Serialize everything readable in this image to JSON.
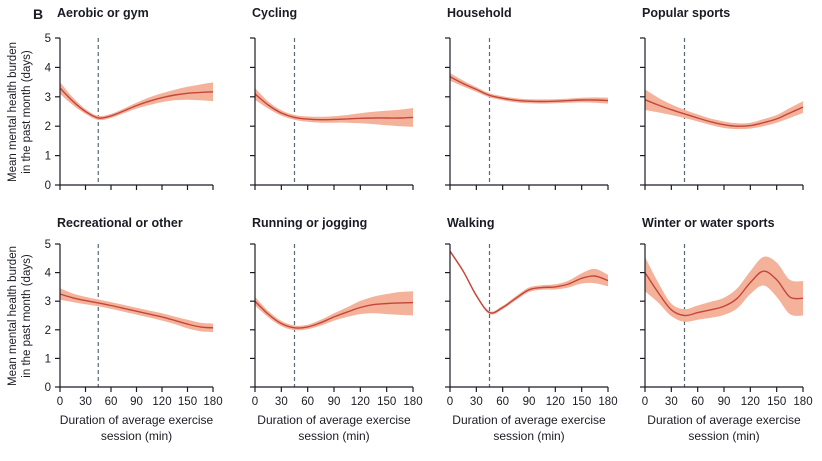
{
  "figure": {
    "panel_letter": "B",
    "ylabel_line1": "Mean mental health burden",
    "ylabel_line2": "in the past month (days)",
    "xlabel_line1": "Duration of average exercise",
    "xlabel_line2": "session (min)"
  },
  "colors": {
    "line": "#c4463a",
    "band": "#f4b29b",
    "dashed": "#5a6973",
    "axis": "#1a1c24",
    "text": "#1a1c24"
  },
  "chart_data": [
    {
      "type": "line",
      "title": "Aerobic or gym",
      "row": 0,
      "col": 0,
      "xlim": [
        0,
        180
      ],
      "ylim": [
        0,
        5
      ],
      "vline_x": 45,
      "xticks": [
        0,
        30,
        60,
        90,
        120,
        150,
        180
      ],
      "yticks": [
        0,
        1,
        2,
        3,
        4,
        5
      ],
      "x": [
        0,
        15,
        30,
        45,
        60,
        75,
        90,
        105,
        120,
        135,
        150,
        165,
        180
      ],
      "y": [
        3.3,
        2.85,
        2.5,
        2.28,
        2.35,
        2.52,
        2.7,
        2.85,
        2.97,
        3.06,
        3.12,
        3.15,
        3.17
      ],
      "ci_low": [
        3.1,
        2.72,
        2.42,
        2.21,
        2.28,
        2.44,
        2.6,
        2.72,
        2.82,
        2.88,
        2.9,
        2.88,
        2.85
      ],
      "ci_high": [
        3.5,
        2.98,
        2.58,
        2.35,
        2.42,
        2.6,
        2.8,
        2.98,
        3.12,
        3.24,
        3.34,
        3.42,
        3.49
      ]
    },
    {
      "type": "line",
      "title": "Cycling",
      "row": 0,
      "col": 1,
      "xlim": [
        0,
        180
      ],
      "ylim": [
        0,
        5
      ],
      "vline_x": 45,
      "xticks": [
        0,
        30,
        60,
        90,
        120,
        150,
        180
      ],
      "yticks": [
        0,
        1,
        2,
        3,
        4,
        5
      ],
      "x": [
        0,
        15,
        30,
        45,
        60,
        75,
        90,
        105,
        120,
        135,
        150,
        165,
        180
      ],
      "y": [
        3.1,
        2.72,
        2.45,
        2.3,
        2.24,
        2.22,
        2.23,
        2.25,
        2.27,
        2.28,
        2.28,
        2.28,
        2.3
      ],
      "ci_low": [
        2.9,
        2.6,
        2.36,
        2.22,
        2.15,
        2.12,
        2.12,
        2.12,
        2.1,
        2.07,
        2.03,
        2.0,
        1.98
      ],
      "ci_high": [
        3.3,
        2.84,
        2.54,
        2.38,
        2.33,
        2.32,
        2.34,
        2.38,
        2.44,
        2.49,
        2.53,
        2.56,
        2.62
      ]
    },
    {
      "type": "line",
      "title": "Household",
      "row": 0,
      "col": 2,
      "xlim": [
        0,
        180
      ],
      "ylim": [
        0,
        5
      ],
      "vline_x": 45,
      "xticks": [
        0,
        30,
        60,
        90,
        120,
        150,
        180
      ],
      "yticks": [
        0,
        1,
        2,
        3,
        4,
        5
      ],
      "x": [
        0,
        15,
        30,
        45,
        60,
        75,
        90,
        105,
        120,
        135,
        150,
        165,
        180
      ],
      "y": [
        3.68,
        3.45,
        3.25,
        3.05,
        2.95,
        2.88,
        2.85,
        2.84,
        2.85,
        2.87,
        2.89,
        2.89,
        2.87
      ],
      "ci_low": [
        3.55,
        3.35,
        3.17,
        2.98,
        2.88,
        2.81,
        2.78,
        2.77,
        2.78,
        2.8,
        2.81,
        2.8,
        2.77
      ],
      "ci_high": [
        3.81,
        3.55,
        3.33,
        3.12,
        3.02,
        2.95,
        2.92,
        2.91,
        2.92,
        2.94,
        2.97,
        2.98,
        2.97
      ]
    },
    {
      "type": "line",
      "title": "Popular sports",
      "row": 0,
      "col": 3,
      "xlim": [
        0,
        180
      ],
      "ylim": [
        0,
        5
      ],
      "vline_x": 45,
      "xticks": [
        0,
        30,
        60,
        90,
        120,
        150,
        180
      ],
      "yticks": [
        0,
        1,
        2,
        3,
        4,
        5
      ],
      "x": [
        0,
        15,
        30,
        45,
        60,
        75,
        90,
        105,
        120,
        135,
        150,
        165,
        180
      ],
      "y": [
        2.9,
        2.72,
        2.56,
        2.42,
        2.28,
        2.15,
        2.05,
        2.0,
        2.02,
        2.12,
        2.25,
        2.45,
        2.65
      ],
      "ci_low": [
        2.55,
        2.47,
        2.38,
        2.28,
        2.16,
        2.04,
        1.94,
        1.9,
        1.92,
        2.0,
        2.12,
        2.28,
        2.45
      ],
      "ci_high": [
        3.25,
        2.97,
        2.74,
        2.56,
        2.4,
        2.26,
        2.16,
        2.1,
        2.12,
        2.24,
        2.38,
        2.62,
        2.85
      ]
    },
    {
      "type": "line",
      "title": "Recreational or other",
      "row": 1,
      "col": 0,
      "xlim": [
        0,
        180
      ],
      "ylim": [
        0,
        5
      ],
      "vline_x": 45,
      "xticks": [
        0,
        30,
        60,
        90,
        120,
        150,
        180
      ],
      "yticks": [
        0,
        1,
        2,
        3,
        4,
        5
      ],
      "x": [
        0,
        15,
        30,
        45,
        60,
        75,
        90,
        105,
        120,
        135,
        150,
        165,
        180
      ],
      "y": [
        3.25,
        3.12,
        3.02,
        2.94,
        2.85,
        2.75,
        2.65,
        2.55,
        2.45,
        2.33,
        2.2,
        2.1,
        2.07
      ],
      "ci_low": [
        3.05,
        2.97,
        2.89,
        2.82,
        2.73,
        2.63,
        2.53,
        2.43,
        2.32,
        2.2,
        2.05,
        1.95,
        1.92
      ],
      "ci_high": [
        3.45,
        3.27,
        3.15,
        3.06,
        2.97,
        2.87,
        2.77,
        2.67,
        2.58,
        2.46,
        2.35,
        2.25,
        2.22
      ]
    },
    {
      "type": "line",
      "title": "Running or jogging",
      "row": 1,
      "col": 1,
      "xlim": [
        0,
        180
      ],
      "ylim": [
        0,
        5
      ],
      "vline_x": 45,
      "xticks": [
        0,
        30,
        60,
        90,
        120,
        150,
        180
      ],
      "yticks": [
        0,
        1,
        2,
        3,
        4,
        5
      ],
      "x": [
        0,
        15,
        30,
        45,
        60,
        75,
        90,
        105,
        120,
        135,
        150,
        165,
        180
      ],
      "y": [
        3.0,
        2.55,
        2.22,
        2.07,
        2.1,
        2.25,
        2.45,
        2.62,
        2.78,
        2.88,
        2.92,
        2.94,
        2.95
      ],
      "ci_low": [
        2.85,
        2.44,
        2.13,
        1.99,
        2.02,
        2.15,
        2.32,
        2.45,
        2.55,
        2.58,
        2.55,
        2.52,
        2.5
      ],
      "ci_high": [
        3.15,
        2.66,
        2.31,
        2.15,
        2.18,
        2.35,
        2.58,
        2.79,
        3.01,
        3.16,
        3.25,
        3.32,
        3.35
      ]
    },
    {
      "type": "line",
      "title": "Walking",
      "row": 1,
      "col": 2,
      "xlim": [
        0,
        180
      ],
      "ylim": [
        0,
        5
      ],
      "vline_x": 45,
      "xticks": [
        0,
        30,
        60,
        90,
        120,
        150,
        180
      ],
      "yticks": [
        0,
        1,
        2,
        3,
        4,
        5
      ],
      "x": [
        0,
        15,
        30,
        45,
        60,
        75,
        90,
        105,
        120,
        135,
        150,
        165,
        180
      ],
      "y": [
        4.75,
        4.05,
        3.2,
        2.6,
        2.78,
        3.1,
        3.4,
        3.48,
        3.5,
        3.6,
        3.8,
        3.88,
        3.72
      ],
      "ci_low": [
        4.7,
        4.0,
        3.15,
        2.55,
        2.72,
        3.03,
        3.32,
        3.4,
        3.41,
        3.48,
        3.62,
        3.63,
        3.52
      ],
      "ci_high": [
        4.8,
        4.1,
        3.25,
        2.65,
        2.84,
        3.17,
        3.48,
        3.56,
        3.59,
        3.72,
        3.98,
        4.13,
        3.92
      ]
    },
    {
      "type": "line",
      "title": "Winter or water sports",
      "row": 1,
      "col": 3,
      "xlim": [
        0,
        180
      ],
      "ylim": [
        0,
        5
      ],
      "vline_x": 45,
      "xticks": [
        0,
        30,
        60,
        90,
        120,
        150,
        180
      ],
      "yticks": [
        0,
        1,
        2,
        3,
        4,
        5
      ],
      "x": [
        0,
        15,
        30,
        45,
        60,
        75,
        90,
        105,
        120,
        135,
        150,
        165,
        180
      ],
      "y": [
        4.0,
        3.3,
        2.7,
        2.5,
        2.6,
        2.7,
        2.82,
        3.1,
        3.65,
        4.05,
        3.75,
        3.15,
        3.1
      ],
      "ci_low": [
        3.35,
        2.95,
        2.48,
        2.28,
        2.35,
        2.42,
        2.52,
        2.75,
        3.25,
        3.55,
        3.15,
        2.55,
        2.5
      ],
      "ci_high": [
        4.55,
        3.65,
        2.92,
        2.72,
        2.85,
        2.98,
        3.12,
        3.45,
        4.05,
        4.55,
        4.35,
        3.75,
        3.7
      ]
    }
  ]
}
